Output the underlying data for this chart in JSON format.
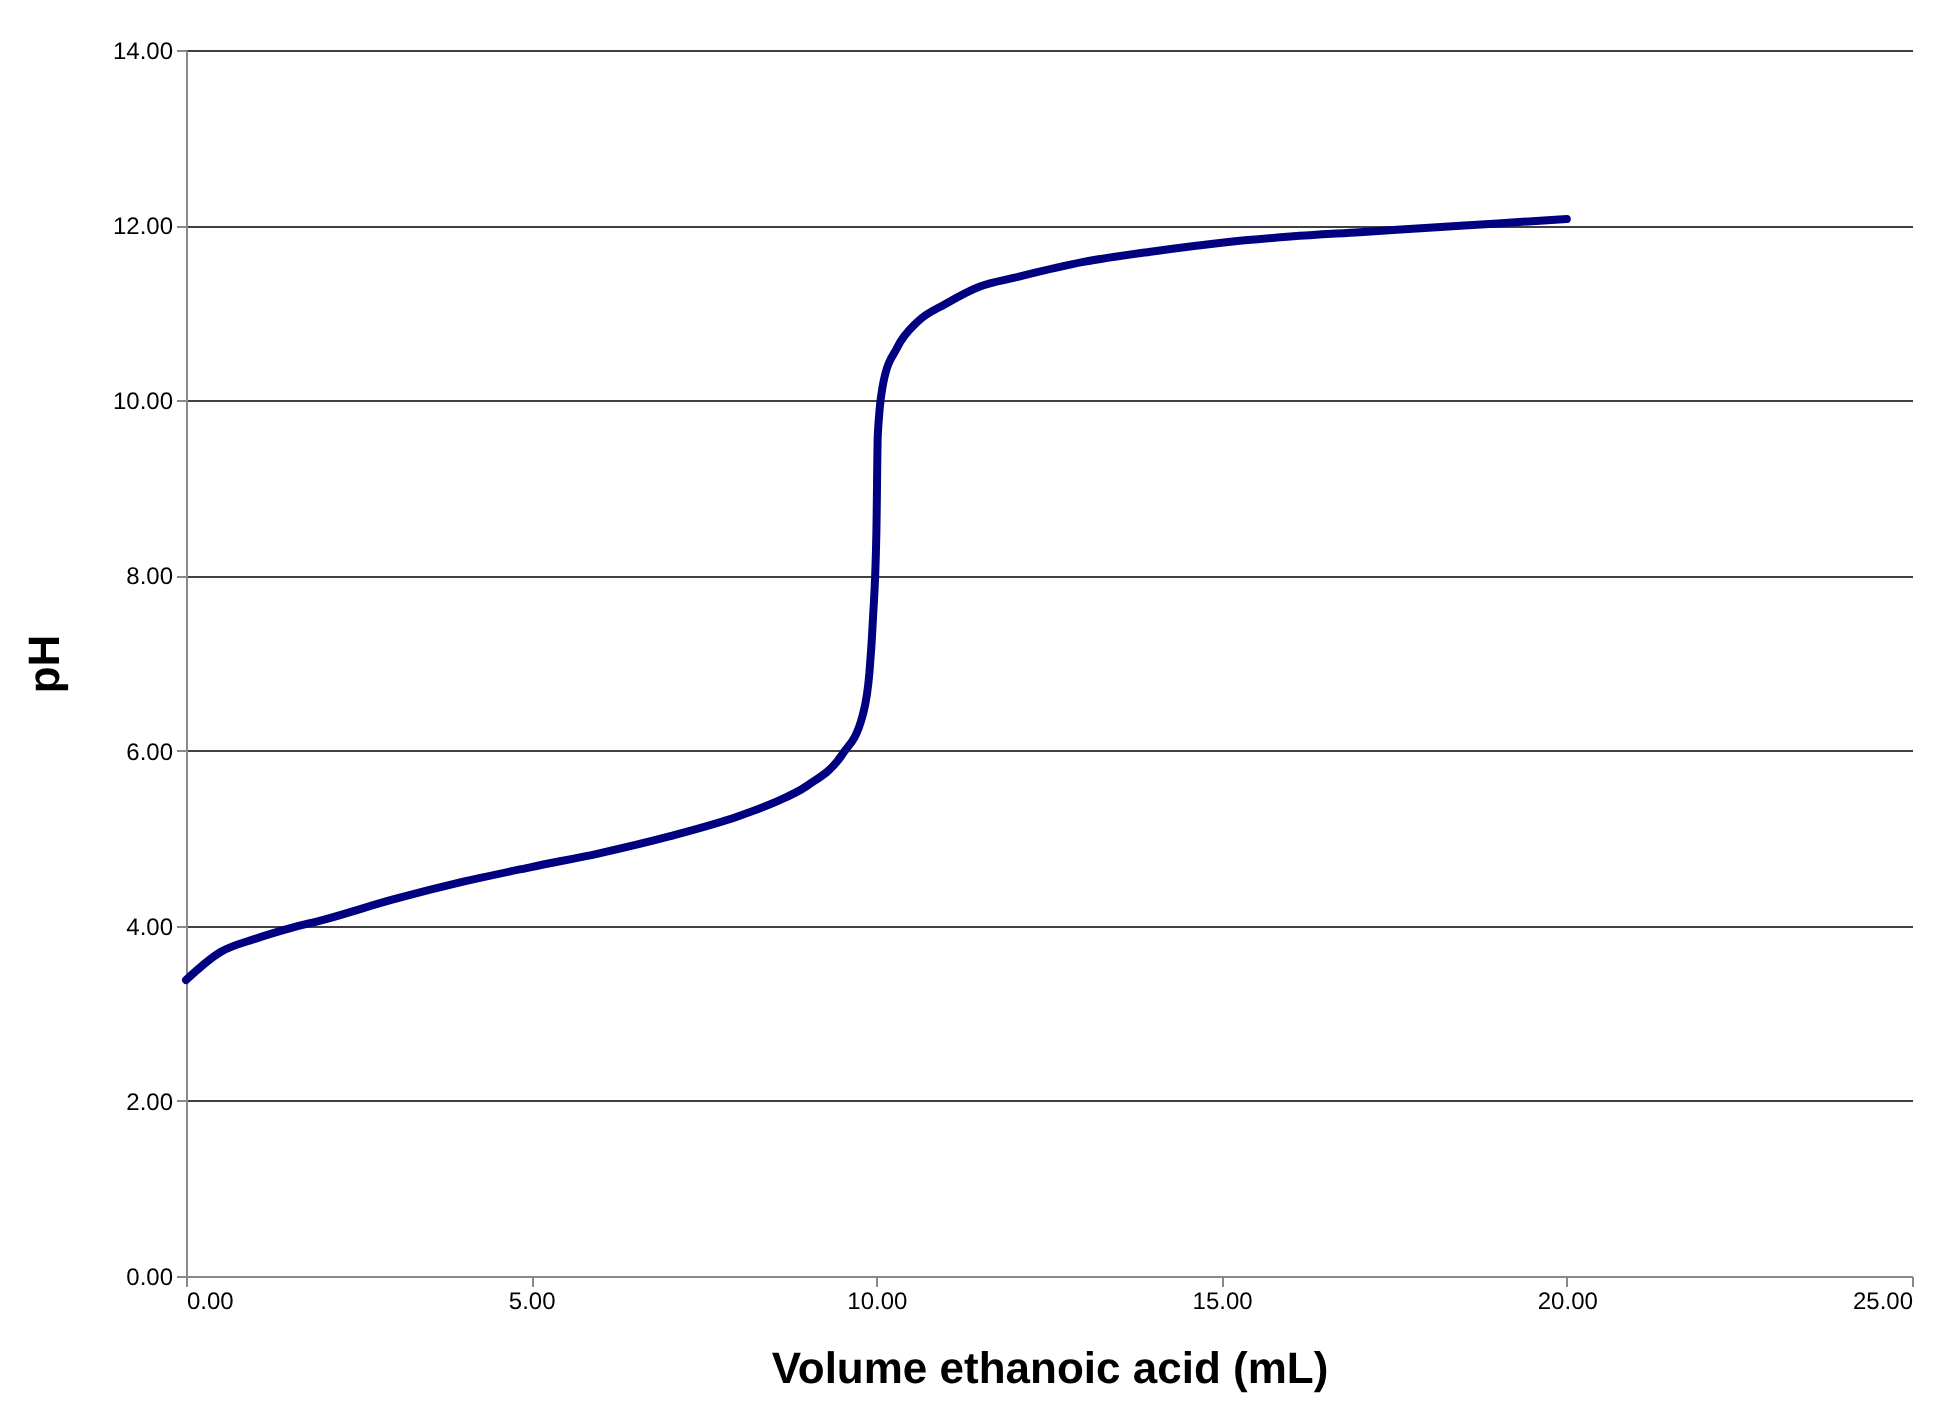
{
  "chart_data": {
    "type": "line",
    "xlabel": "Volume ethanoic acid (mL)",
    "ylabel": "pH",
    "x": [
      0,
      0.5,
      1,
      1.5,
      2,
      3,
      4,
      5,
      6,
      7,
      8,
      8.5,
      9,
      9.5,
      9.8,
      9.9,
      9.95,
      10,
      10.02,
      10.1,
      10.3,
      10.6,
      11,
      11.5,
      12,
      13,
      14,
      15,
      16,
      17,
      18,
      19,
      20
    ],
    "series": [
      {
        "color": "#000080",
        "values": [
          3.38,
          3.7,
          3.85,
          3.97,
          4.07,
          4.3,
          4.5,
          4.67,
          4.83,
          5.02,
          5.25,
          5.4,
          5.6,
          5.95,
          6.4,
          6.9,
          7.5,
          8.5,
          9.6,
          10.2,
          10.6,
          10.9,
          11.1,
          11.3,
          11.4,
          11.58,
          11.7,
          11.8,
          11.87,
          11.92,
          11.97,
          12.02,
          12.07
        ]
      }
    ],
    "xlim": [
      0,
      25
    ],
    "ylim": [
      0,
      14
    ],
    "xticks": [
      {
        "value": 0,
        "label": "0.00"
      },
      {
        "value": 5,
        "label": "5.00"
      },
      {
        "value": 10,
        "label": "10.00"
      },
      {
        "value": 15,
        "label": "15.00"
      },
      {
        "value": 20,
        "label": "20.00"
      },
      {
        "value": 25,
        "label": "25.00"
      }
    ],
    "yticks": [
      {
        "value": 0,
        "label": "0.00"
      },
      {
        "value": 2,
        "label": "2.00"
      },
      {
        "value": 4,
        "label": "4.00"
      },
      {
        "value": 6,
        "label": "6.00"
      },
      {
        "value": 8,
        "label": "8.00"
      },
      {
        "value": 10,
        "label": "10.00"
      },
      {
        "value": 12,
        "label": "12.00"
      },
      {
        "value": 14,
        "label": "14.00"
      }
    ],
    "grid": "y",
    "marker": "none",
    "line_style": "solid"
  }
}
